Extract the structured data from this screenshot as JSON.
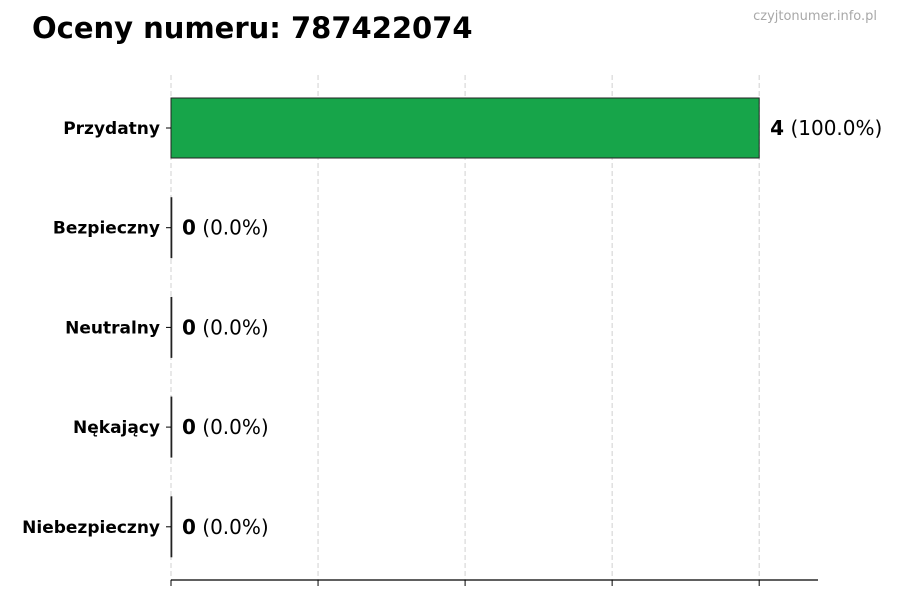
{
  "title": "Oceny numeru: 787422074",
  "watermark": "czyjtonumer.info.pl",
  "chart_data": {
    "type": "bar",
    "orientation": "horizontal",
    "title": "Oceny numeru: 787422074",
    "categories": [
      "Przydatny",
      "Bezpieczny",
      "Neutralny",
      "Nękający",
      "Niebezpieczny"
    ],
    "values": [
      4,
      0,
      0,
      0,
      0
    ],
    "percentages": [
      "100.0%",
      "0.0%",
      "0.0%",
      "0.0%",
      "0.0%"
    ],
    "xlim": [
      0,
      4.4
    ],
    "xticks": [
      0,
      1,
      2,
      3,
      4
    ],
    "xtick_labels_shown": false,
    "grid": "vertical dashed",
    "bar_color": "#17a54a",
    "xlabel": "",
    "ylabel": ""
  }
}
